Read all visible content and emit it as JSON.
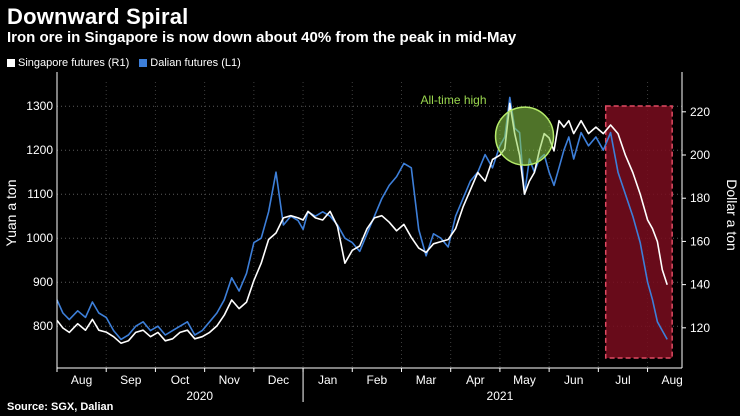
{
  "header": {
    "title": "Downward Spiral",
    "subtitle": "Iron ore in Singapore is now down about 40% from the peak in mid-May"
  },
  "footer": {
    "source": "Source: SGX, Dalian"
  },
  "colors": {
    "background": "#000000",
    "singapore": "#ffffff",
    "dalian": "#3d7fd9",
    "highlight_fill": "#7a0d1e",
    "highlight_border": "#e04a62",
    "annotation": "#9ad64f"
  },
  "chart_data": {
    "type": "line",
    "title": "Downward Spiral",
    "subtitle": "Iron ore in Singapore is now down about 40% from the peak in mid-May",
    "legend": {
      "position": "top-left",
      "entries": [
        "Singapore futures (R1)",
        "Dalian futures (L1)"
      ]
    },
    "ylabel_left": "Yuan a ton",
    "ylabel_right": "Dollar a ton",
    "ylim_left": [
      705,
      1355
    ],
    "ylim_right": [
      101.4,
      233.8
    ],
    "yticks_left": [
      800,
      900,
      1000,
      1100,
      1200,
      1300
    ],
    "yticks_right": [
      120,
      140,
      160,
      180,
      200,
      220
    ],
    "grid": true,
    "xlim": [
      0,
      12.7
    ],
    "x_month_labels": [
      "Aug",
      "Sep",
      "Oct",
      "Nov",
      "Dec",
      "Jan",
      "Feb",
      "Mar",
      "Apr",
      "May",
      "Jun",
      "Jul",
      "Aug"
    ],
    "x_month_positions": [
      0.5,
      1.5,
      2.5,
      3.5,
      4.5,
      5.5,
      6.5,
      7.5,
      8.5,
      9.5,
      10.5,
      11.5,
      12.5
    ],
    "x_year_labels": [
      "2020",
      "2021"
    ],
    "x_year_positions": [
      2.9,
      9.0
    ],
    "annotation": {
      "text": "All-time high",
      "x": 9.5
    },
    "highlight": {
      "x_start": 11.15,
      "x_end": 12.5
    },
    "series": [
      {
        "name": "Dalian futures (L1)",
        "axis": "left",
        "x": [
          0.0,
          0.12,
          0.25,
          0.42,
          0.58,
          0.72,
          0.85,
          1.0,
          1.15,
          1.3,
          1.45,
          1.6,
          1.75,
          1.9,
          2.05,
          2.2,
          2.35,
          2.5,
          2.65,
          2.8,
          2.95,
          3.1,
          3.25,
          3.4,
          3.55,
          3.7,
          3.85,
          4.0,
          4.15,
          4.3,
          4.45,
          4.6,
          4.75,
          4.9,
          5.0,
          5.1,
          5.25,
          5.4,
          5.55,
          5.7,
          5.85,
          6.0,
          6.15,
          6.3,
          6.45,
          6.6,
          6.75,
          6.9,
          7.05,
          7.2,
          7.35,
          7.5,
          7.65,
          7.8,
          7.95,
          8.1,
          8.25,
          8.4,
          8.55,
          8.7,
          8.85,
          9.0,
          9.1,
          9.2,
          9.3,
          9.4,
          9.5,
          9.6,
          9.7,
          9.8,
          9.9,
          10.0,
          10.1,
          10.2,
          10.3,
          10.4,
          10.5,
          10.65,
          10.8,
          10.95,
          11.1,
          11.25,
          11.4,
          11.55,
          11.7,
          11.85,
          12.0,
          12.1,
          12.2,
          12.3,
          12.4
        ],
        "values": [
          860,
          830,
          815,
          835,
          820,
          855,
          830,
          820,
          790,
          770,
          780,
          800,
          810,
          790,
          800,
          780,
          790,
          800,
          810,
          780,
          790,
          810,
          830,
          860,
          910,
          880,
          920,
          990,
          1000,
          1060,
          1150,
          1030,
          1050,
          1040,
          1020,
          1060,
          1050,
          1060,
          1050,
          1030,
          1000,
          990,
          970,
          1010,
          1050,
          1090,
          1120,
          1140,
          1170,
          1160,
          1020,
          960,
          1010,
          1000,
          980,
          1050,
          1090,
          1130,
          1150,
          1190,
          1160,
          1210,
          1230,
          1320,
          1250,
          1240,
          1100,
          1180,
          1150,
          1180,
          1190,
          1150,
          1120,
          1160,
          1200,
          1230,
          1180,
          1240,
          1210,
          1230,
          1200,
          1240,
          1150,
          1100,
          1050,
          990,
          900,
          860,
          810,
          790,
          770
        ]
      },
      {
        "name": "Singapore futures (R1)",
        "axis": "right",
        "x": [
          0.0,
          0.12,
          0.25,
          0.42,
          0.58,
          0.72,
          0.85,
          1.0,
          1.15,
          1.3,
          1.45,
          1.6,
          1.75,
          1.9,
          2.05,
          2.2,
          2.35,
          2.5,
          2.65,
          2.8,
          2.95,
          3.1,
          3.25,
          3.4,
          3.55,
          3.7,
          3.85,
          4.0,
          4.15,
          4.3,
          4.45,
          4.6,
          4.75,
          4.9,
          5.0,
          5.1,
          5.25,
          5.4,
          5.55,
          5.7,
          5.85,
          6.0,
          6.15,
          6.3,
          6.45,
          6.6,
          6.75,
          6.9,
          7.05,
          7.2,
          7.35,
          7.5,
          7.65,
          7.8,
          7.95,
          8.1,
          8.25,
          8.4,
          8.55,
          8.7,
          8.85,
          9.0,
          9.1,
          9.2,
          9.3,
          9.4,
          9.5,
          9.6,
          9.7,
          9.8,
          9.9,
          10.0,
          10.1,
          10.2,
          10.3,
          10.4,
          10.5,
          10.65,
          10.8,
          10.95,
          11.1,
          11.25,
          11.4,
          11.55,
          11.7,
          11.85,
          12.0,
          12.1,
          12.2,
          12.3,
          12.4
        ],
        "values": [
          123.5,
          119.9,
          117.9,
          121.9,
          118.9,
          123.9,
          118.9,
          118.0,
          115.9,
          112.9,
          114.0,
          117.9,
          118.9,
          115.9,
          117.9,
          114.0,
          114.9,
          117.9,
          118.9,
          114.9,
          115.9,
          117.9,
          120.9,
          125.9,
          132.9,
          128.9,
          131.9,
          141.9,
          149.9,
          160.9,
          163.9,
          170.9,
          171.9,
          170.9,
          169.9,
          173.9,
          170.9,
          169.9,
          173.9,
          166.9,
          149.9,
          155.9,
          157.9,
          165.9,
          170.9,
          171.9,
          168.9,
          164.9,
          167.9,
          161.9,
          156.9,
          154.9,
          158.9,
          159.9,
          160.9,
          165.9,
          175.9,
          183.9,
          191.9,
          187.9,
          197.9,
          199.9,
          202.9,
          223.9,
          209.9,
          199.9,
          181.9,
          187.9,
          191.9,
          201.9,
          209.9,
          207.9,
          201.9,
          215.9,
          212.9,
          215.9,
          209.9,
          215.9,
          209.9,
          212.9,
          209.9,
          213.9,
          209.9,
          199.9,
          191.9,
          181.9,
          169.9,
          165.9,
          159.9,
          146.9,
          139.9
        ]
      }
    ]
  }
}
